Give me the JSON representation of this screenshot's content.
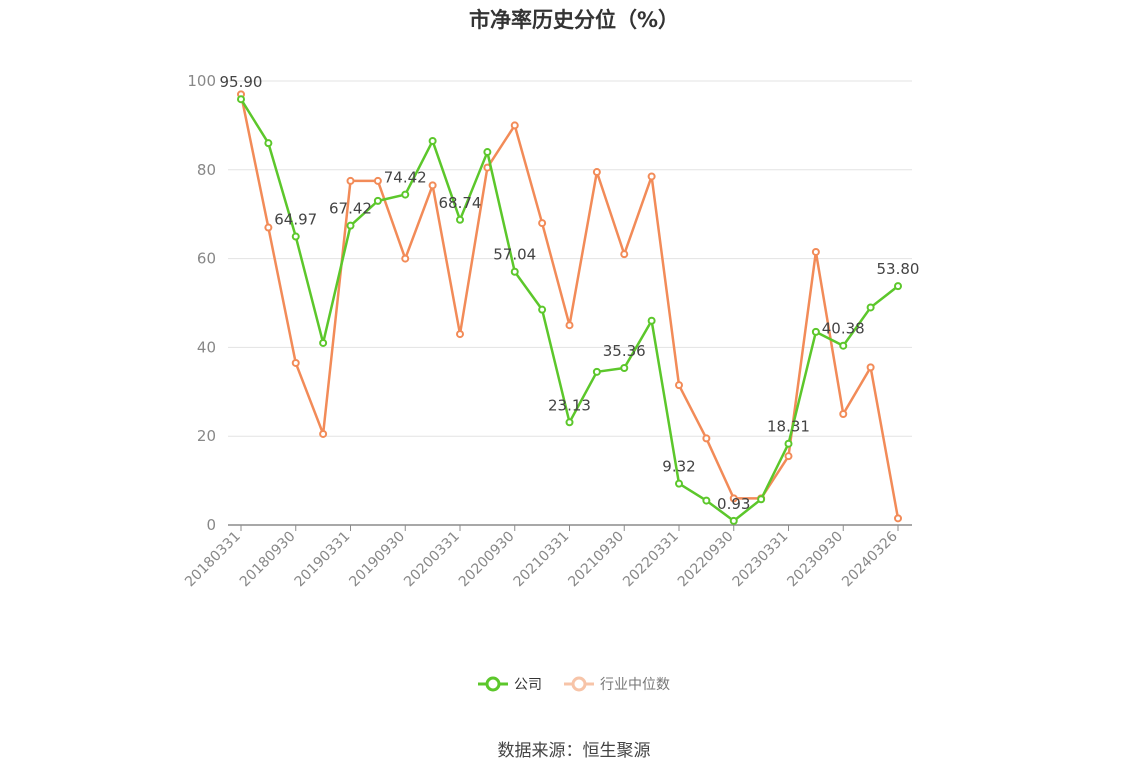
{
  "title": "市净率历史分位（%）",
  "source": "数据来源：恒生聚源",
  "legend": [
    {
      "name": "公司",
      "color": "#5cc72b"
    },
    {
      "name": "行业中位数",
      "color": "#f28b58"
    }
  ],
  "chart_data": {
    "type": "line",
    "title": "市净率历史分位（%）",
    "ylim": [
      0,
      100
    ],
    "yticks": [
      0,
      20,
      40,
      60,
      80,
      100
    ],
    "grid": true,
    "legend_position": "bottom",
    "x_tick_labels": [
      "20180331",
      "20180930",
      "20190331",
      "20190930",
      "20200331",
      "20200930",
      "20210331",
      "20210930",
      "20220331",
      "20220930",
      "20230331",
      "20230930",
      "20240326"
    ],
    "x": [
      "20180331",
      "20180630",
      "20180930",
      "20181231",
      "20190331",
      "20190630",
      "20190930",
      "20191231",
      "20200331",
      "20200630",
      "20200930",
      "20201231",
      "20210331",
      "20210630",
      "20210930",
      "20211231",
      "20220331",
      "20220630",
      "20220930",
      "20221231",
      "20230331",
      "20230630",
      "20230930",
      "20231231",
      "20240326"
    ],
    "series": [
      {
        "name": "公司",
        "color": "#5cc72b",
        "values": [
          95.9,
          86.0,
          64.97,
          41.0,
          67.42,
          73.0,
          74.42,
          86.5,
          68.74,
          84.0,
          57.04,
          48.5,
          23.13,
          34.5,
          35.36,
          46.0,
          9.32,
          5.5,
          0.93,
          5.8,
          18.31,
          43.5,
          40.38,
          49.0,
          53.8
        ],
        "labels": {
          "0": "95.90",
          "2": "64.97",
          "4": "67.42",
          "6": "74.42",
          "8": "68.74",
          "10": "57.04",
          "12": "23.13",
          "14": "35.36",
          "16": "9.32",
          "18": "0.93",
          "20": "18.31",
          "22": "40.38",
          "24": "53.80"
        }
      },
      {
        "name": "行业中位数",
        "color": "#f28b58",
        "values": [
          97.0,
          67.0,
          36.5,
          20.5,
          77.5,
          77.5,
          60.0,
          76.5,
          43.0,
          80.5,
          90.0,
          68.0,
          45.0,
          79.5,
          61.0,
          78.5,
          31.5,
          19.5,
          6.0,
          6.0,
          15.5,
          61.5,
          25.0,
          35.5,
          1.5
        ]
      }
    ]
  }
}
